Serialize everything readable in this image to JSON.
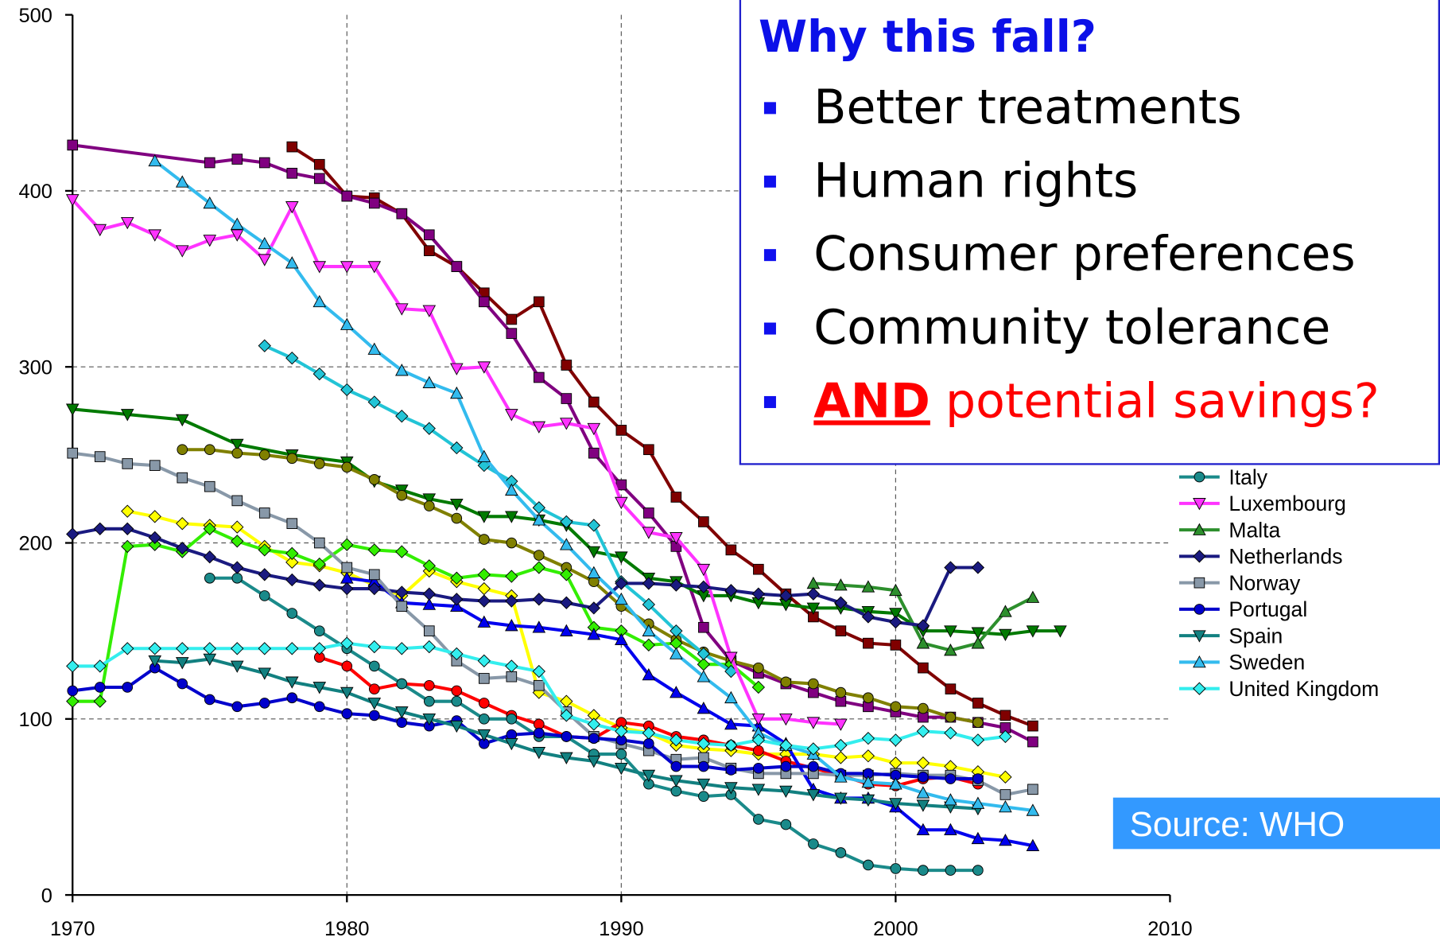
{
  "chart_data": {
    "type": "line",
    "xlim": [
      1970,
      2010
    ],
    "xticks": [
      1970,
      1980,
      1990,
      2000,
      2010
    ],
    "ylim": [
      0,
      500
    ],
    "yticks": [
      0,
      100,
      200,
      300,
      400,
      500
    ],
    "grid": true,
    "legend": "right",
    "series": [
      {
        "color": "#800000",
        "marker": "square",
        "x": [
          1978,
          1979,
          1980,
          1981,
          1982,
          1983,
          1984,
          1985,
          1986,
          1987,
          1988,
          1989,
          1990,
          1991,
          1992,
          1993,
          1994,
          1995,
          1996,
          1997,
          1998,
          1999,
          2000,
          2001,
          2002,
          2003,
          2004,
          2005
        ],
        "values": [
          425,
          415,
          397,
          396,
          387,
          366,
          357,
          342,
          327,
          337,
          301,
          280,
          264,
          253,
          226,
          212,
          196,
          185,
          171,
          158,
          150,
          143,
          142,
          129,
          117,
          109,
          102,
          96
        ]
      },
      {
        "color": "#800080",
        "marker": "square",
        "x": [
          1970,
          1975,
          1976,
          1977,
          1978,
          1979,
          1980,
          1981,
          1982,
          1983,
          1984,
          1985,
          1986,
          1987,
          1988,
          1989,
          1990,
          1991,
          1992,
          1993,
          1994,
          1995,
          1996,
          1997,
          1998,
          1999,
          2000,
          2001,
          2002,
          2003,
          2004,
          2005
        ],
        "values": [
          426,
          416,
          418,
          416,
          410,
          407,
          397,
          393,
          387,
          375,
          357,
          337,
          319,
          294,
          282,
          251,
          233,
          217,
          198,
          152,
          133,
          126,
          120,
          115,
          110,
          107,
          104,
          101,
          101,
          98,
          95,
          87
        ]
      },
      {
        "color": "#007a00",
        "marker": "down",
        "x": [
          1970,
          1972,
          1974,
          1976,
          1978,
          1980,
          1981,
          1982,
          1983,
          1984,
          1985,
          1986,
          1987,
          1988,
          1989,
          1990,
          1991,
          1992,
          1993,
          1994,
          1995,
          1996,
          1997,
          1998,
          1999,
          2000,
          2001,
          2002,
          2003,
          2004,
          2005,
          2006
        ],
        "values": [
          276,
          273,
          270,
          256,
          250,
          246,
          235,
          230,
          225,
          222,
          215,
          215,
          213,
          210,
          195,
          192,
          180,
          178,
          170,
          170,
          166,
          165,
          163,
          163,
          161,
          160,
          150,
          150,
          149,
          148,
          150,
          150
        ]
      },
      {
        "color": "#808000",
        "marker": "circle",
        "x": [
          1974,
          1975,
          1976,
          1977,
          1978,
          1979,
          1980,
          1981,
          1982,
          1983,
          1984,
          1985,
          1986,
          1987,
          1988,
          1989,
          1990,
          1991,
          1992,
          1993,
          1994,
          1995,
          1996,
          1997,
          1998,
          1999,
          2000,
          2001,
          2002,
          2003
        ],
        "values": [
          253,
          253,
          251,
          250,
          248,
          245,
          243,
          236,
          227,
          221,
          214,
          202,
          200,
          193,
          186,
          178,
          164,
          154,
          145,
          138,
          133,
          129,
          121,
          120,
          115,
          112,
          107,
          106,
          101,
          98
        ]
      },
      {
        "color": "#ffff00",
        "marker": "diamond",
        "x": [
          1972,
          1973,
          1974,
          1975,
          1976,
          1977,
          1978,
          1979,
          1980,
          1981,
          1982,
          1983,
          1984,
          1985,
          1986,
          1987,
          1988,
          1989,
          1990,
          1991,
          1992,
          1993,
          1994,
          1995,
          1996,
          1997,
          1998,
          1999,
          2000,
          2001,
          2002,
          2003,
          2004
        ],
        "values": [
          218,
          215,
          211,
          210,
          209,
          198,
          189,
          187,
          183,
          176,
          170,
          184,
          178,
          174,
          170,
          115,
          110,
          102,
          95,
          92,
          85,
          83,
          82,
          80,
          80,
          80,
          78,
          79,
          75,
          75,
          73,
          70,
          67
        ]
      },
      {
        "color": "#33ee00",
        "marker": "diamond",
        "x": [
          1970,
          1971,
          1972,
          1973,
          1974,
          1975,
          1976,
          1977,
          1978,
          1979,
          1980,
          1981,
          1982,
          1983,
          1984,
          1985,
          1986,
          1987,
          1988,
          1989,
          1990,
          1991,
          1992,
          1993,
          1994,
          1995
        ],
        "values": [
          110,
          110,
          198,
          199,
          195,
          208,
          201,
          196,
          194,
          188,
          199,
          196,
          195,
          187,
          180,
          182,
          181,
          186,
          182,
          152,
          150,
          142,
          143,
          131,
          131,
          118
        ]
      },
      {
        "color": "#ff0000",
        "marker": "circle",
        "x": [
          1979,
          1980,
          1981,
          1982,
          1983,
          1984,
          1985,
          1986,
          1987,
          1988,
          1989,
          1990,
          1991,
          1992,
          1993,
          1994,
          1995,
          1996,
          1997,
          1998,
          1999,
          2000,
          2001,
          2002,
          2003
        ],
        "values": [
          135,
          130,
          117,
          120,
          119,
          116,
          109,
          102,
          97,
          90,
          89,
          98,
          96,
          90,
          88,
          85,
          82,
          76,
          72,
          68,
          63,
          62,
          66,
          67,
          63
        ]
      },
      {
        "color": "#0000ee",
        "marker": "up",
        "x": [
          1980,
          1981,
          1982,
          1983,
          1984,
          1985,
          1986,
          1987,
          1988,
          1989,
          1990,
          1991,
          1992,
          1993,
          1994,
          1995,
          1996,
          1997,
          1998,
          1999,
          2000,
          2001,
          2002,
          2003,
          2004,
          2005
        ],
        "values": [
          180,
          178,
          166,
          165,
          164,
          155,
          153,
          152,
          150,
          148,
          145,
          125,
          115,
          106,
          97,
          96,
          86,
          60,
          55,
          55,
          50,
          37,
          37,
          32,
          31,
          28
        ]
      },
      {
        "color": "#22c4d6",
        "marker": "diamond",
        "x": [
          1977,
          1978,
          1979,
          1980,
          1981,
          1982,
          1983,
          1984,
          1985,
          1986,
          1987,
          1988,
          1989,
          1990,
          1991,
          1992,
          1993,
          1994
        ],
        "values": [
          312,
          305,
          296,
          287,
          280,
          272,
          265,
          254,
          244,
          235,
          220,
          212,
          210,
          178,
          165,
          150,
          137,
          127
        ]
      },
      {
        "name": "Italy",
        "color": "#1a8a8a",
        "marker": "circle",
        "x": [
          1975,
          1976,
          1977,
          1978,
          1979,
          1980,
          1981,
          1982,
          1983,
          1984,
          1985,
          1986,
          1987,
          1988,
          1989,
          1990,
          1991,
          1992,
          1993,
          1994,
          1995,
          1996,
          1997,
          1998,
          1999,
          2000,
          2001,
          2002,
          2003
        ],
        "values": [
          180,
          180,
          170,
          160,
          150,
          140,
          130,
          120,
          110,
          110,
          100,
          100,
          90,
          90,
          80,
          80,
          63,
          59,
          56,
          57,
          43,
          40,
          29,
          24,
          17,
          15,
          14,
          14,
          14
        ]
      },
      {
        "name": "Luxembourg",
        "color": "#ff33ff",
        "marker": "down",
        "x": [
          1970,
          1971,
          1972,
          1973,
          1974,
          1975,
          1976,
          1977,
          1978,
          1979,
          1980,
          1981,
          1982,
          1983,
          1984,
          1985,
          1986,
          1987,
          1988,
          1989,
          1990,
          1991,
          1992,
          1993,
          1994,
          1995,
          1996,
          1997,
          1998
        ],
        "values": [
          395,
          378,
          382,
          375,
          366,
          372,
          375,
          361,
          391,
          357,
          357,
          357,
          333,
          332,
          299,
          300,
          273,
          266,
          268,
          265,
          223,
          206,
          203,
          185,
          135,
          100,
          100,
          98,
          97
        ]
      },
      {
        "name": "Malta",
        "color": "#2d8f2d",
        "marker": "up",
        "x": [
          1997,
          1998,
          1999,
          2000,
          2001,
          2002,
          2003,
          2004,
          2005
        ],
        "values": [
          177,
          176,
          175,
          173,
          143,
          139,
          143,
          161,
          169
        ]
      },
      {
        "name": "Netherlands",
        "color": "#1a1a80",
        "marker": "diamond",
        "x": [
          1970,
          1971,
          1972,
          1973,
          1974,
          1975,
          1976,
          1977,
          1978,
          1979,
          1980,
          1981,
          1982,
          1983,
          1984,
          1985,
          1986,
          1987,
          1988,
          1989,
          1990,
          1991,
          1992,
          1993,
          1994,
          1995,
          1996,
          1997,
          1998,
          1999,
          2000,
          2001,
          2002,
          2003
        ],
        "values": [
          205,
          208,
          208,
          203,
          197,
          192,
          186,
          182,
          179,
          176,
          174,
          174,
          172,
          171,
          168,
          167,
          167,
          168,
          166,
          163,
          177,
          177,
          176,
          175,
          173,
          171,
          170,
          171,
          166,
          158,
          155,
          153,
          186,
          186
        ]
      },
      {
        "name": "Norway",
        "color": "#8898a8",
        "marker": "square",
        "x": [
          1970,
          1971,
          1972,
          1973,
          1974,
          1975,
          1976,
          1977,
          1978,
          1979,
          1980,
          1981,
          1982,
          1983,
          1984,
          1985,
          1986,
          1987,
          1988,
          1989,
          1990,
          1991,
          1992,
          1993,
          1994,
          1995,
          1996,
          1997,
          1998,
          1999,
          2000,
          2001,
          2002,
          2003,
          2004,
          2005
        ],
        "values": [
          251,
          249,
          245,
          244,
          237,
          232,
          224,
          217,
          211,
          200,
          186,
          182,
          164,
          150,
          133,
          123,
          124,
          119,
          104,
          90,
          86,
          82,
          77,
          78,
          72,
          69,
          69,
          69,
          68,
          68,
          69,
          68,
          68,
          65,
          57,
          60
        ]
      },
      {
        "name": "Portugal",
        "color": "#0000cc",
        "marker": "circle",
        "x": [
          1970,
          1971,
          1972,
          1973,
          1974,
          1975,
          1976,
          1977,
          1978,
          1979,
          1980,
          1981,
          1982,
          1983,
          1984,
          1985,
          1986,
          1987,
          1988,
          1989,
          1990,
          1991,
          1992,
          1993,
          1994,
          1995,
          1996,
          1997,
          1998,
          1999,
          2000,
          2001,
          2002,
          2003
        ],
        "values": [
          116,
          118,
          118,
          129,
          120,
          111,
          107,
          109,
          112,
          107,
          103,
          102,
          98,
          96,
          99,
          86,
          91,
          92,
          90,
          89,
          88,
          86,
          73,
          73,
          71,
          72,
          73,
          73,
          69,
          69,
          68,
          67,
          66,
          66
        ]
      },
      {
        "name": "Spain",
        "color": "#128080",
        "marker": "down",
        "x": [
          1973,
          1974,
          1975,
          1976,
          1977,
          1978,
          1979,
          1980,
          1981,
          1982,
          1983,
          1984,
          1985,
          1986,
          1987,
          1988,
          1989,
          1990,
          1991,
          1992,
          1993,
          1994,
          1995,
          1996,
          1997,
          1998,
          1999,
          2000,
          2001,
          2002,
          2003
        ],
        "values": [
          133,
          132,
          134,
          130,
          126,
          121,
          118,
          115,
          109,
          104,
          100,
          96,
          91,
          86,
          81,
          78,
          76,
          72,
          68,
          65,
          63,
          61,
          60,
          59,
          57,
          55,
          54,
          52,
          51,
          50,
          49
        ]
      },
      {
        "name": "Sweden",
        "color": "#33bbee",
        "marker": "up",
        "x": [
          1973,
          1974,
          1975,
          1976,
          1977,
          1978,
          1979,
          1980,
          1981,
          1982,
          1983,
          1984,
          1985,
          1986,
          1987,
          1988,
          1989,
          1990,
          1991,
          1992,
          1993,
          1994,
          1995,
          1996,
          1997,
          1998,
          1999,
          2000,
          2001,
          2002,
          2003,
          2004,
          2005
        ],
        "values": [
          417,
          405,
          393,
          381,
          370,
          359,
          337,
          324,
          310,
          298,
          291,
          285,
          249,
          230,
          213,
          199,
          183,
          168,
          150,
          137,
          124,
          112,
          92,
          85,
          80,
          67,
          64,
          63,
          58,
          54,
          52,
          50,
          48
        ]
      },
      {
        "name": "United Kingdom",
        "color": "#33eeee",
        "marker": "diamond",
        "x": [
          1970,
          1971,
          1972,
          1973,
          1974,
          1975,
          1976,
          1977,
          1978,
          1979,
          1980,
          1981,
          1982,
          1983,
          1984,
          1985,
          1986,
          1987,
          1988,
          1989,
          1990,
          1991,
          1992,
          1993,
          1994,
          1995,
          1996,
          1997,
          1998,
          1999,
          2000,
          2001,
          2002,
          2003,
          2004
        ],
        "values": [
          130,
          130,
          140,
          140,
          140,
          140,
          140,
          140,
          140,
          140,
          143,
          141,
          140,
          141,
          137,
          133,
          130,
          127,
          102,
          97,
          93,
          92,
          88,
          86,
          85,
          88,
          85,
          83,
          85,
          89,
          88,
          93,
          92,
          88,
          90
        ]
      }
    ]
  },
  "text_box": {
    "heading": "Why this fall?",
    "bullets": [
      "Better treatments",
      "Human rights",
      "Consumer preferences",
      "Community tolerance"
    ],
    "last_emphasis": "AND",
    "last_rest": " potential savings?"
  },
  "source": "Source: WHO"
}
